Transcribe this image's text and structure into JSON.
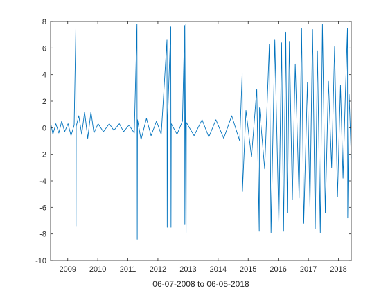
{
  "chart_data": {
    "type": "line",
    "title": "",
    "xlabel": "06-07-2008 to 06-05-2018",
    "ylabel": "",
    "x_range": [
      "2008-06-07",
      "2018-06-05"
    ],
    "ylim": [
      -10,
      8
    ],
    "x_ticks": [
      {
        "label": "2009",
        "date": "2009-01-01"
      },
      {
        "label": "2010",
        "date": "2010-01-01"
      },
      {
        "label": "2011",
        "date": "2011-01-01"
      },
      {
        "label": "2012",
        "date": "2012-01-01"
      },
      {
        "label": "2013",
        "date": "2013-01-01"
      },
      {
        "label": "2014",
        "date": "2014-01-01"
      },
      {
        "label": "2015",
        "date": "2015-01-01"
      },
      {
        "label": "2016",
        "date": "2016-01-01"
      },
      {
        "label": "2017",
        "date": "2017-01-01"
      },
      {
        "label": "2018",
        "date": "2018-01-01"
      }
    ],
    "y_ticks": [
      {
        "label": "8",
        "value": 8
      },
      {
        "label": "6",
        "value": 6
      },
      {
        "label": "4",
        "value": 4
      },
      {
        "label": "2",
        "value": 2
      },
      {
        "label": "0",
        "value": 0
      },
      {
        "label": "-2",
        "value": -2
      },
      {
        "label": "-4",
        "value": -4
      },
      {
        "label": "-6",
        "value": -6
      },
      {
        "label": "-8",
        "value": -8
      },
      {
        "label": "-10",
        "value": -10
      }
    ],
    "grid": false,
    "line_color": "#0072BD",
    "series": [
      {
        "points": [
          {
            "x": "2008-06-07",
            "y": 0.4
          },
          {
            "x": "2008-07-05",
            "y": -0.5
          },
          {
            "x": "2008-08-10",
            "y": 0.3
          },
          {
            "x": "2008-09-15",
            "y": -0.4
          },
          {
            "x": "2008-10-20",
            "y": 0.5
          },
          {
            "x": "2008-11-25",
            "y": -0.3
          },
          {
            "x": "2009-01-05",
            "y": 0.3
          },
          {
            "x": "2009-02-10",
            "y": -0.6
          },
          {
            "x": "2009-03-20",
            "y": 0.2
          },
          {
            "x": "2009-04-10",
            "y": 7.6
          },
          {
            "x": "2009-04-12",
            "y": -7.4
          },
          {
            "x": "2009-04-14",
            "y": 0.1
          },
          {
            "x": "2009-05-15",
            "y": 0.9
          },
          {
            "x": "2009-06-20",
            "y": -0.5
          },
          {
            "x": "2009-07-25",
            "y": 1.2
          },
          {
            "x": "2009-09-01",
            "y": -0.8
          },
          {
            "x": "2009-10-10",
            "y": 1.2
          },
          {
            "x": "2009-11-15",
            "y": -0.4
          },
          {
            "x": "2010-01-05",
            "y": 0.3
          },
          {
            "x": "2010-03-10",
            "y": -0.3
          },
          {
            "x": "2010-05-20",
            "y": 0.3
          },
          {
            "x": "2010-07-15",
            "y": -0.2
          },
          {
            "x": "2010-09-20",
            "y": 0.3
          },
          {
            "x": "2010-11-10",
            "y": -0.3
          },
          {
            "x": "2011-01-15",
            "y": 0.2
          },
          {
            "x": "2011-03-20",
            "y": -0.4
          },
          {
            "x": "2011-04-22",
            "y": 7.8
          },
          {
            "x": "2011-04-25",
            "y": -8.4
          },
          {
            "x": "2011-04-28",
            "y": 0.6
          },
          {
            "x": "2011-06-10",
            "y": -0.9
          },
          {
            "x": "2011-08-15",
            "y": 0.7
          },
          {
            "x": "2011-10-10",
            "y": -0.6
          },
          {
            "x": "2011-12-15",
            "y": 0.5
          },
          {
            "x": "2012-02-10",
            "y": -0.5
          },
          {
            "x": "2012-04-20",
            "y": 6.6
          },
          {
            "x": "2012-04-23",
            "y": -7.5
          },
          {
            "x": "2012-04-26",
            "y": 0.4
          },
          {
            "x": "2012-06-05",
            "y": 7.6
          },
          {
            "x": "2012-06-08",
            "y": -7.5
          },
          {
            "x": "2012-06-11",
            "y": 0.3
          },
          {
            "x": "2012-08-20",
            "y": -0.5
          },
          {
            "x": "2012-10-25",
            "y": 0.5
          },
          {
            "x": "2012-11-20",
            "y": 7.7
          },
          {
            "x": "2012-11-23",
            "y": -7.3
          },
          {
            "x": "2012-12-05",
            "y": 7.8
          },
          {
            "x": "2012-12-08",
            "y": -7.9
          },
          {
            "x": "2012-12-11",
            "y": 0.4
          },
          {
            "x": "2013-03-15",
            "y": -0.6
          },
          {
            "x": "2013-06-20",
            "y": 0.6
          },
          {
            "x": "2013-09-10",
            "y": -0.7
          },
          {
            "x": "2013-12-05",
            "y": 0.6
          },
          {
            "x": "2014-03-10",
            "y": -0.8
          },
          {
            "x": "2014-06-15",
            "y": 0.9
          },
          {
            "x": "2014-09-20",
            "y": -1.0
          },
          {
            "x": "2014-10-20",
            "y": 4.1
          },
          {
            "x": "2014-10-23",
            "y": -4.8
          },
          {
            "x": "2014-12-05",
            "y": 1.3
          },
          {
            "x": "2015-02-10",
            "y": -2.2
          },
          {
            "x": "2015-04-15",
            "y": 2.9
          },
          {
            "x": "2015-05-15",
            "y": -7.8
          },
          {
            "x": "2015-05-18",
            "y": 1.5
          },
          {
            "x": "2015-07-20",
            "y": -3.1
          },
          {
            "x": "2015-09-15",
            "y": 6.3
          },
          {
            "x": "2015-10-05",
            "y": -7.9
          },
          {
            "x": "2015-11-20",
            "y": 6.6
          },
          {
            "x": "2016-01-08",
            "y": -7.2
          },
          {
            "x": "2016-02-10",
            "y": 6.4
          },
          {
            "x": "2016-03-05",
            "y": -7.8
          },
          {
            "x": "2016-04-01",
            "y": 7.2
          },
          {
            "x": "2016-04-20",
            "y": -6.4
          },
          {
            "x": "2016-05-15",
            "y": 6.5
          },
          {
            "x": "2016-06-20",
            "y": -5.4
          },
          {
            "x": "2016-07-25",
            "y": 4.8
          },
          {
            "x": "2016-09-10",
            "y": -5.3
          },
          {
            "x": "2016-10-10",
            "y": 7.5
          },
          {
            "x": "2016-11-05",
            "y": -7.2
          },
          {
            "x": "2016-12-20",
            "y": 3.4
          },
          {
            "x": "2017-01-20",
            "y": -6.0
          },
          {
            "x": "2017-02-20",
            "y": 7.4
          },
          {
            "x": "2017-03-25",
            "y": -7.6
          },
          {
            "x": "2017-04-20",
            "y": 5.8
          },
          {
            "x": "2017-05-25",
            "y": -7.9
          },
          {
            "x": "2017-06-20",
            "y": 7.8
          },
          {
            "x": "2017-07-25",
            "y": -6.4
          },
          {
            "x": "2017-09-01",
            "y": 3.5
          },
          {
            "x": "2017-10-10",
            "y": -3.0
          },
          {
            "x": "2017-11-15",
            "y": 6.1
          },
          {
            "x": "2017-12-20",
            "y": -5.2
          },
          {
            "x": "2018-01-25",
            "y": 3.2
          },
          {
            "x": "2018-02-25",
            "y": -3.8
          },
          {
            "x": "2018-03-25",
            "y": 2.4
          },
          {
            "x": "2018-04-20",
            "y": 7.5
          },
          {
            "x": "2018-04-23",
            "y": -6.8
          },
          {
            "x": "2018-05-10",
            "y": 2.5
          },
          {
            "x": "2018-06-05",
            "y": -2.3
          }
        ]
      }
    ]
  }
}
